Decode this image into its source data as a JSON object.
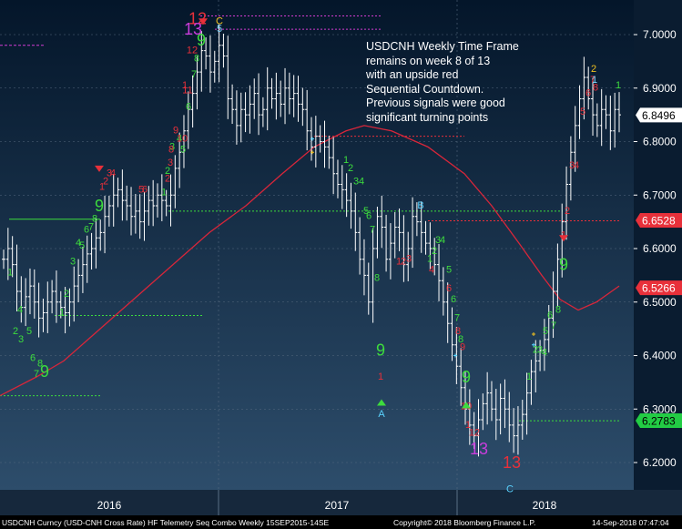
{
  "chart_data": {
    "type": "ohlc-bar",
    "instrument": "USDCNH",
    "title": "",
    "annotation": [
      "USDCNH Weekly Time Frame",
      "remains on week 8 of 13",
      "with an upside red",
      "Sequential Countdown.",
      "Previous signals were good",
      "significant turning points"
    ],
    "yticks": [
      "7.0000",
      "6.9000",
      "6.8000",
      "6.7000",
      "6.6000",
      "6.5000",
      "6.4000",
      "6.3000",
      "6.2000"
    ],
    "ylim": [
      6.17,
      7.05
    ],
    "xlabels": [
      "2016",
      "2017",
      "2018"
    ],
    "price_tags": [
      {
        "label": "6.8496",
        "value": 6.8496,
        "bg": "#ffffff",
        "fg": "#000000"
      },
      {
        "label": "6.6528",
        "value": 6.6528,
        "bg": "#e8303a",
        "fg": "#ffffff"
      },
      {
        "label": "6.5266",
        "value": 6.5266,
        "bg": "#e8303a",
        "fg": "#ffffff"
      },
      {
        "label": "6.2783",
        "value": 6.2783,
        "bg": "#22cc44",
        "fg": "#000000"
      }
    ],
    "series_close": [
      6.58,
      6.6,
      6.57,
      6.52,
      6.49,
      6.51,
      6.53,
      6.5,
      6.47,
      6.48,
      6.5,
      6.52,
      6.5,
      6.49,
      6.48,
      6.5,
      6.53,
      6.55,
      6.57,
      6.59,
      6.6,
      6.62,
      6.63,
      6.66,
      6.68,
      6.7,
      6.71,
      6.69,
      6.68,
      6.66,
      6.67,
      6.65,
      6.67,
      6.69,
      6.68,
      6.7,
      6.69,
      6.68,
      6.7,
      6.75,
      6.78,
      6.82,
      6.86,
      6.89,
      6.93,
      6.97,
      6.96,
      6.93,
      6.95,
      6.98,
      6.96,
      6.88,
      6.86,
      6.83,
      6.86,
      6.85,
      6.87,
      6.89,
      6.85,
      6.86,
      6.9,
      6.88,
      6.89,
      6.87,
      6.9,
      6.88,
      6.89,
      6.87,
      6.86,
      6.82,
      6.79,
      6.81,
      6.8,
      6.79,
      6.77,
      6.74,
      6.72,
      6.71,
      6.69,
      6.67,
      6.63,
      6.58,
      6.55,
      6.5,
      6.6,
      6.66,
      6.64,
      6.58,
      6.61,
      6.64,
      6.63,
      6.57,
      6.6,
      6.66,
      6.65,
      6.63,
      6.61,
      6.6,
      6.57,
      6.54,
      6.5,
      6.46,
      6.42,
      6.38,
      6.34,
      6.3,
      6.27,
      6.25,
      6.28,
      6.31,
      6.33,
      6.3,
      6.28,
      6.32,
      6.3,
      6.27,
      6.25,
      6.27,
      6.29,
      6.33,
      6.37,
      6.39,
      6.41,
      6.43,
      6.47,
      6.52,
      6.58,
      6.65,
      6.72,
      6.78,
      6.83,
      6.88,
      6.92,
      6.88,
      6.85,
      6.83,
      6.86,
      6.85,
      6.82,
      6.86,
      6.85
    ],
    "moving_average": {
      "color": "#d8263a",
      "points": [
        [
          0,
          6.325
        ],
        [
          40,
          6.36
        ],
        [
          70,
          6.39
        ],
        [
          110,
          6.45
        ],
        [
          150,
          6.51
        ],
        [
          190,
          6.57
        ],
        [
          230,
          6.63
        ],
        [
          270,
          6.68
        ],
        [
          310,
          6.74
        ],
        [
          345,
          6.79
        ],
        [
          380,
          6.82
        ],
        [
          400,
          6.83
        ],
        [
          430,
          6.82
        ],
        [
          470,
          6.79
        ],
        [
          510,
          6.74
        ],
        [
          540,
          6.68
        ],
        [
          570,
          6.61
        ],
        [
          595,
          6.55
        ],
        [
          615,
          6.505
        ],
        [
          635,
          6.485
        ],
        [
          655,
          6.5
        ],
        [
          680,
          6.53
        ]
      ]
    },
    "setup_labels": [
      {
        "t": "1",
        "c": "#3ddc3d",
        "x": 11,
        "y": 6.55,
        "s": 11
      },
      {
        "t": "2",
        "c": "#3ddc3d",
        "x": 17,
        "y": 6.44,
        "s": 11
      },
      {
        "t": "3",
        "c": "#3ddc3d",
        "x": 23,
        "y": 6.425,
        "s": 11
      },
      {
        "t": "4",
        "c": "#3ddc3d",
        "x": 22,
        "y": 6.48,
        "s": 11
      },
      {
        "t": "5",
        "c": "#3ddc3d",
        "x": 32,
        "y": 6.44,
        "s": 11
      },
      {
        "t": "6",
        "c": "#3ddc3d",
        "x": 36,
        "y": 6.39,
        "s": 11
      },
      {
        "t": "7",
        "c": "#3ddc3d",
        "x": 40,
        "y": 6.36,
        "s": 11
      },
      {
        "t": "8",
        "c": "#3ddc3d",
        "x": 44,
        "y": 6.38,
        "s": 11
      },
      {
        "t": "9",
        "c": "#3ddc3d",
        "x": 49,
        "y": 6.36,
        "s": 18
      },
      {
        "t": "1",
        "c": "#3ddc3d",
        "x": 68,
        "y": 6.475,
        "s": 11
      },
      {
        "t": "2",
        "c": "#3ddc3d",
        "x": 73,
        "y": 6.51,
        "s": 11
      },
      {
        "t": "3",
        "c": "#3ddc3d",
        "x": 80,
        "y": 6.57,
        "s": 11
      },
      {
        "t": "4",
        "c": "#3ddc3d",
        "x": 86,
        "y": 6.605,
        "s": 11
      },
      {
        "t": "5",
        "c": "#3ddc3d",
        "x": 90,
        "y": 6.6,
        "s": 11
      },
      {
        "t": "6",
        "c": "#3ddc3d",
        "x": 95,
        "y": 6.63,
        "s": 11
      },
      {
        "t": "7",
        "c": "#3ddc3d",
        "x": 100,
        "y": 6.635,
        "s": 11
      },
      {
        "t": "8",
        "c": "#3ddc3d",
        "x": 104,
        "y": 6.65,
        "s": 11
      },
      {
        "t": "9",
        "c": "#3ddc3d",
        "x": 109,
        "y": 6.67,
        "s": 18
      },
      {
        "t": "1",
        "c": "#e8303a",
        "x": 112,
        "y": 6.71,
        "s": 11
      },
      {
        "t": "2",
        "c": "#e8303a",
        "x": 116,
        "y": 6.72,
        "s": 11
      },
      {
        "t": "3",
        "c": "#e8303a",
        "x": 120,
        "y": 6.735,
        "s": 11
      },
      {
        "t": "4",
        "c": "#e8303a",
        "x": 124,
        "y": 6.735,
        "s": 11
      },
      {
        "t": "5",
        "c": "#e8303a",
        "x": 155,
        "y": 6.705,
        "s": 11
      },
      {
        "t": "6",
        "c": "#e8303a",
        "x": 159,
        "y": 6.705,
        "s": 11
      },
      {
        "t": "1",
        "c": "#3ddc3d",
        "x": 180,
        "y": 6.7,
        "s": 11
      },
      {
        "t": "2",
        "c": "#3ddc3d",
        "x": 184,
        "y": 6.74,
        "s": 11
      },
      {
        "t": "3",
        "c": "#3ddc3d",
        "x": 189,
        "y": 6.785,
        "s": 11
      },
      {
        "t": "4",
        "c": "#3ddc3d",
        "x": 197,
        "y": 6.8,
        "s": 11
      },
      {
        "t": "5",
        "c": "#3ddc3d",
        "x": 201,
        "y": 6.78,
        "s": 11
      },
      {
        "t": "6",
        "c": "#3ddc3d",
        "x": 207,
        "y": 6.86,
        "s": 11
      },
      {
        "t": "7",
        "c": "#3ddc3d",
        "x": 213,
        "y": 6.92,
        "s": 11
      },
      {
        "t": "8",
        "c": "#3ddc3d",
        "x": 216,
        "y": 6.95,
        "s": 11
      },
      {
        "t": "9",
        "c": "#3ddc3d",
        "x": 221,
        "y": 6.98,
        "s": 18
      },
      {
        "t": "1",
        "c": "#3ddc3d",
        "x": 380,
        "y": 6.76,
        "s": 11
      },
      {
        "t": "2",
        "c": "#3ddc3d",
        "x": 385,
        "y": 6.745,
        "s": 11
      },
      {
        "t": "3",
        "c": "#3ddc3d",
        "x": 391,
        "y": 6.72,
        "s": 11
      },
      {
        "t": "4",
        "c": "#3ddc3d",
        "x": 397,
        "y": 6.72,
        "s": 11
      },
      {
        "t": "5",
        "c": "#3ddc3d",
        "x": 402,
        "y": 6.665,
        "s": 11
      },
      {
        "t": "6",
        "c": "#3ddc3d",
        "x": 405,
        "y": 6.655,
        "s": 11
      },
      {
        "t": "7",
        "c": "#3ddc3d",
        "x": 409,
        "y": 6.63,
        "s": 11
      },
      {
        "t": "8",
        "c": "#3ddc3d",
        "x": 414,
        "y": 6.54,
        "s": 11
      },
      {
        "t": "9",
        "c": "#3ddc3d",
        "x": 418,
        "y": 6.4,
        "s": 18
      },
      {
        "t": "1",
        "c": "#e8303a",
        "x": 418,
        "y": 6.355,
        "s": 11
      },
      {
        "t": "1",
        "c": "#e8303a",
        "x": 438,
        "y": 6.57,
        "s": 11
      },
      {
        "t": "2",
        "c": "#e8303a",
        "x": 443,
        "y": 6.57,
        "s": 11
      },
      {
        "t": "3",
        "c": "#e8303a",
        "x": 449,
        "y": 6.575,
        "s": 11
      },
      {
        "t": "1",
        "c": "#3ddc3d",
        "x": 472,
        "y": 6.575,
        "s": 11
      },
      {
        "t": "2",
        "c": "#3ddc3d",
        "x": 477,
        "y": 6.59,
        "s": 11
      },
      {
        "t": "3",
        "c": "#3ddc3d",
        "x": 481,
        "y": 6.61,
        "s": 11
      },
      {
        "t": "4",
        "c": "#3ddc3d",
        "x": 486,
        "y": 6.61,
        "s": 11
      },
      {
        "t": "4",
        "c": "#e8303a",
        "x": 474,
        "y": 6.555,
        "s": 11
      },
      {
        "t": "5",
        "c": "#3ddc3d",
        "x": 493,
        "y": 6.555,
        "s": 11
      },
      {
        "t": "6",
        "c": "#e8303a",
        "x": 493,
        "y": 6.52,
        "s": 11
      },
      {
        "t": "6",
        "c": "#3ddc3d",
        "x": 498,
        "y": 6.5,
        "s": 11
      },
      {
        "t": "7",
        "c": "#3ddc3d",
        "x": 502,
        "y": 6.465,
        "s": 11
      },
      {
        "t": "8",
        "c": "#e8303a",
        "x": 503,
        "y": 6.44,
        "s": 11
      },
      {
        "t": "8",
        "c": "#3ddc3d",
        "x": 506,
        "y": 6.425,
        "s": 11
      },
      {
        "t": "9",
        "c": "#e8303a",
        "x": 508,
        "y": 6.41,
        "s": 11
      },
      {
        "t": "9",
        "c": "#3ddc3d",
        "x": 512,
        "y": 6.35,
        "s": 18
      },
      {
        "t": "10",
        "c": "#e8303a",
        "x": 512,
        "y": 6.3,
        "s": 11
      },
      {
        "t": "1",
        "c": "#e8303a",
        "x": 514,
        "y": 6.265,
        "s": 11
      },
      {
        "t": "12",
        "c": "#e8303a",
        "x": 521,
        "y": 6.25,
        "s": 11
      },
      {
        "t": "13",
        "c": "#c93ddc",
        "x": 526,
        "y": 6.215,
        "s": 18
      },
      {
        "t": "13",
        "c": "#e8303a",
        "x": 562,
        "y": 6.19,
        "s": 18
      },
      {
        "t": "1",
        "c": "#3ddc3d",
        "x": 581,
        "y": 6.355,
        "s": 11
      },
      {
        "t": "2",
        "c": "#3ddc3d",
        "x": 588,
        "y": 6.405,
        "s": 11
      },
      {
        "t": "3",
        "c": "#3ddc3d",
        "x": 593,
        "y": 6.405,
        "s": 11
      },
      {
        "t": "4",
        "c": "#3ddc3d",
        "x": 598,
        "y": 6.4,
        "s": 11
      },
      {
        "t": "5",
        "c": "#3ddc3d",
        "x": 599,
        "y": 6.44,
        "s": 11
      },
      {
        "t": "6",
        "c": "#3ddc3d",
        "x": 604,
        "y": 6.47,
        "s": 11
      },
      {
        "t": "7",
        "c": "#3ddc3d",
        "x": 608,
        "y": 6.45,
        "s": 11
      },
      {
        "t": "8",
        "c": "#3ddc3d",
        "x": 613,
        "y": 6.48,
        "s": 11
      },
      {
        "t": "9",
        "c": "#3ddc3d",
        "x": 619,
        "y": 6.56,
        "s": 18
      },
      {
        "t": "1",
        "c": "#e8303a",
        "x": 619,
        "y": 6.62,
        "s": 11
      },
      {
        "t": "2",
        "c": "#e8303a",
        "x": 623,
        "y": 6.665,
        "s": 11
      },
      {
        "t": "3",
        "c": "#e8303a",
        "x": 628,
        "y": 6.75,
        "s": 11
      },
      {
        "t": "4",
        "c": "#e8303a",
        "x": 633,
        "y": 6.75,
        "s": 11
      },
      {
        "t": "5",
        "c": "#e8303a",
        "x": 640,
        "y": 6.85,
        "s": 11
      },
      {
        "t": "6",
        "c": "#e8303a",
        "x": 646,
        "y": 6.885,
        "s": 11
      },
      {
        "t": "7",
        "c": "#e8303a",
        "x": 651,
        "y": 6.91,
        "s": 11
      },
      {
        "t": "8",
        "c": "#e8303a",
        "x": 654,
        "y": 6.895,
        "s": 11
      },
      {
        "t": "1",
        "c": "#3ddc3d",
        "x": 679,
        "y": 6.9,
        "s": 11
      },
      {
        "t": "1",
        "c": "#e8303a",
        "x": 203,
        "y": 6.9,
        "s": 11
      },
      {
        "t": "9",
        "c": "#e8303a",
        "x": 193,
        "y": 6.815,
        "s": 11
      },
      {
        "t": "10",
        "c": "#e8303a",
        "x": 200,
        "y": 6.8,
        "s": 11
      },
      {
        "t": "11",
        "c": "#e8303a",
        "x": 206,
        "y": 6.89,
        "s": 11
      },
      {
        "t": "12",
        "c": "#e8303a",
        "x": 211,
        "y": 6.965,
        "s": 11
      },
      {
        "t": "8",
        "c": "#e8303a",
        "x": 188,
        "y": 6.78,
        "s": 11
      },
      {
        "t": "3",
        "c": "#e8303a",
        "x": 187,
        "y": 6.755,
        "s": 11
      },
      {
        "t": "2",
        "c": "#e8303a",
        "x": 184,
        "y": 6.725,
        "s": 11
      },
      {
        "t": "12",
        "c": "#e8303a",
        "x": 217,
        "y": 7.02,
        "s": 18
      },
      {
        "t": "13",
        "c": "#c93ddc",
        "x": 212,
        "y": 7.0,
        "s": 18
      },
      {
        "t": "C",
        "c": "#f0c020",
        "x": 241,
        "y": 7.02,
        "s": 11
      },
      {
        "t": "5",
        "c": "#7fd7ff",
        "x": 241,
        "y": 7.005,
        "s": 11
      },
      {
        "t": "B",
        "c": "#5ad3ff",
        "x": 462,
        "y": 6.675,
        "s": 11
      },
      {
        "t": "A",
        "c": "#5ad3ff",
        "x": 419,
        "y": 6.285,
        "s": 11
      },
      {
        "t": "C",
        "c": "#5ad3ff",
        "x": 560,
        "y": 6.145,
        "s": 11
      },
      {
        "t": "2",
        "c": "#f0c020",
        "x": 652,
        "y": 6.93,
        "s": 11
      },
      {
        "t": "1",
        "c": "#7fd7ff",
        "x": 653,
        "y": 6.91,
        "s": 11
      }
    ]
  },
  "footer": {
    "left": "USDCNH Curncy (USD-CNH Cross Rate) HF Telemetry Seq Combo  Weekly 15SEP2015-14SE",
    "center": "Copyright© 2018 Bloomberg Finance L.P.",
    "right": "14-Sep-2018 07:47:04"
  },
  "colors": {
    "bg_top": "#071a2e",
    "bg_bottom": "#2c4a66",
    "grid": "#5a6e84",
    "bar": "#ffffff",
    "ma": "#d8263a"
  }
}
